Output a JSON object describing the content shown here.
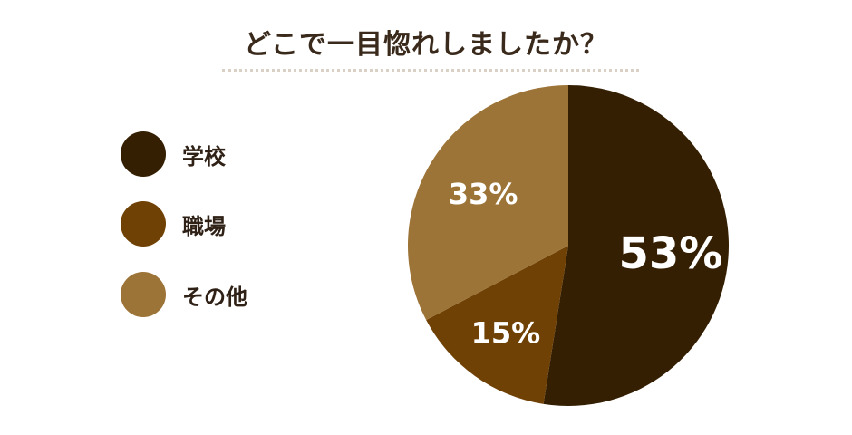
{
  "title": "どこで一目惚れしましたか？",
  "chart_data": {
    "type": "pie",
    "title": "どこで一目惚れしましたか？",
    "categories": [
      "学校",
      "職場",
      "その他"
    ],
    "values": [
      53,
      15,
      33
    ],
    "labels": [
      "53%",
      "15%",
      "33%"
    ],
    "colors": [
      "#351f03",
      "#6f4105",
      "#9d7437"
    ],
    "legend_placement": "left"
  }
}
